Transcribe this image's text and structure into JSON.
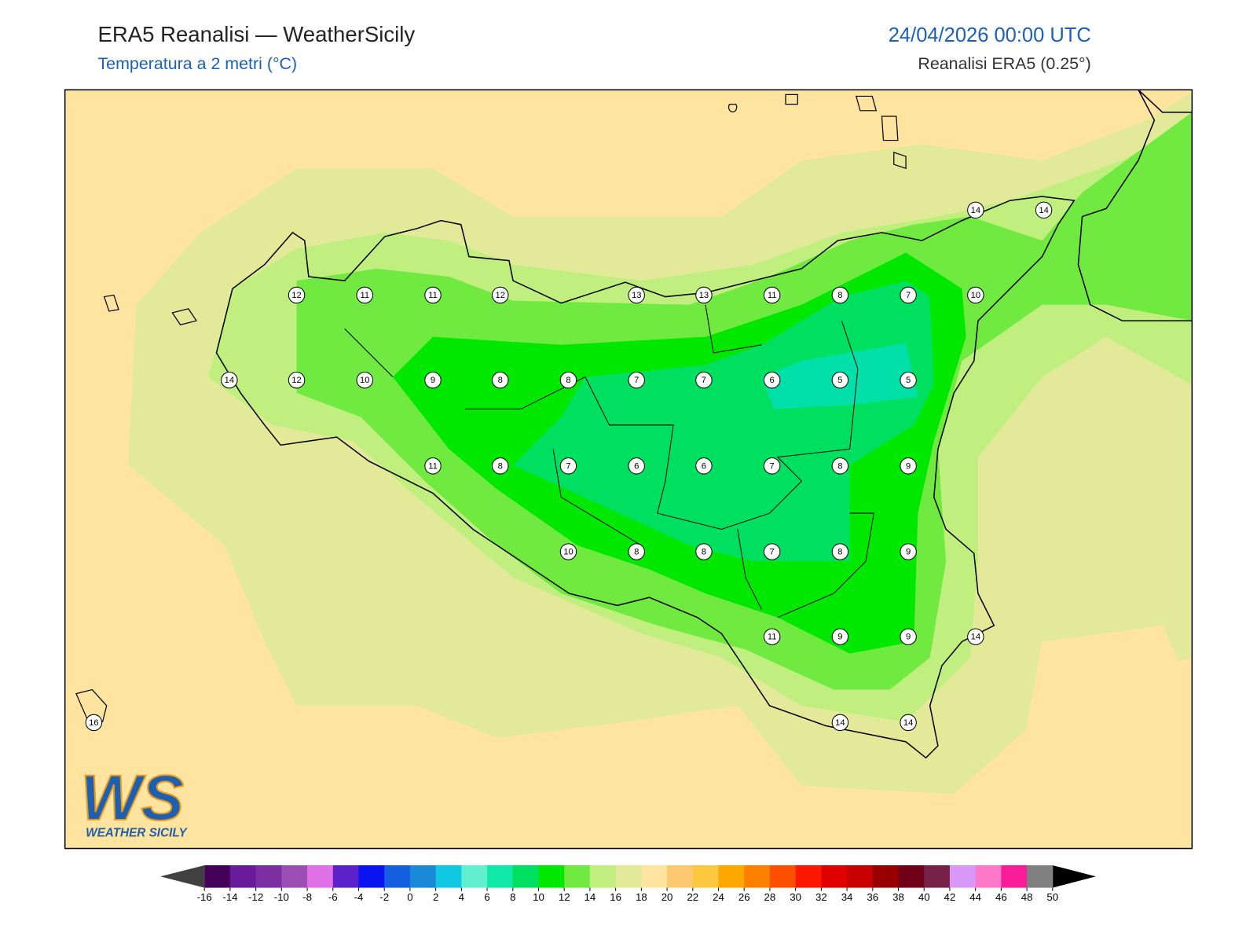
{
  "header": {
    "title": "ERA5 Reanalisi — WeatherSicily",
    "subtitle": "Temperatura a 2 metri (°C)",
    "date": "24/04/2026 00:00 UTC",
    "source": "Reanalisi ERA5 (0.25°)"
  },
  "map": {
    "stations": [
      12,
      11,
      11,
      12,
      13,
      13,
      11,
      8,
      7,
      10,
      14,
      14,
      14,
      12,
      10,
      9,
      8,
      8,
      7,
      7,
      6,
      5,
      5,
      11,
      8,
      7,
      6,
      6,
      7,
      8,
      9,
      10,
      8,
      8,
      7,
      8,
      9,
      11,
      9,
      9,
      14,
      16,
      14,
      14
    ]
  },
  "colorbar": {
    "ticks": [
      -16,
      -14,
      -12,
      -10,
      -8,
      -6,
      -4,
      -2,
      0,
      2,
      4,
      6,
      8,
      10,
      12,
      14,
      16,
      18,
      20,
      22,
      24,
      26,
      28,
      30,
      32,
      34,
      36,
      38,
      40,
      42,
      44,
      46,
      48,
      50
    ],
    "colors": [
      "#45005a",
      "#6a1b9a",
      "#7b2fa0",
      "#9b4fb5",
      "#e070e8",
      "#5a22c8",
      "#0a14f0",
      "#1460e0",
      "#1a8ad8",
      "#10c8e0",
      "#60f0d0",
      "#10e8a8",
      "#00e060",
      "#00e800",
      "#70ea40",
      "#c0ef80",
      "#e2ea9a",
      "#ffe4a0",
      "#fcc870",
      "#fcc840",
      "#fca800",
      "#fc8000",
      "#fc5000",
      "#fc1800",
      "#e00000",
      "#c80000",
      "#980000",
      "#700018",
      "#782048",
      "#d898f8",
      "#fc78c8",
      "#f81c98",
      "#808080"
    ]
  },
  "logo": {
    "letters": "WS",
    "text": "WEATHER SICILY"
  }
}
